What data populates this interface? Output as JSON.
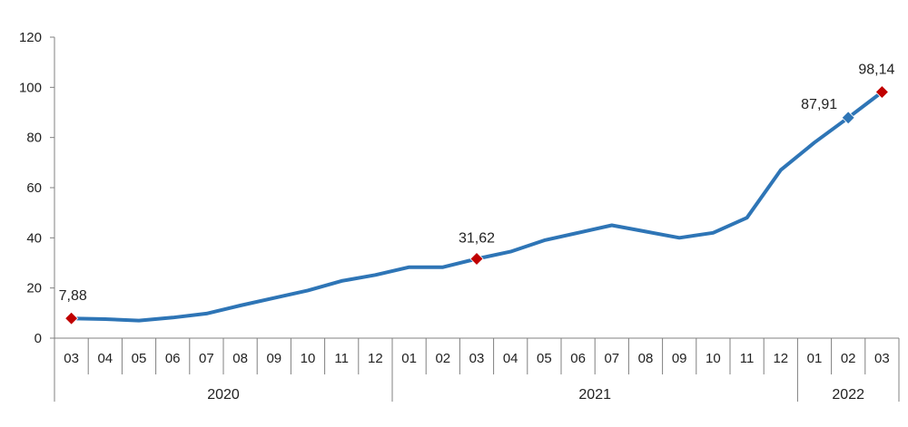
{
  "chart_data": {
    "type": "line",
    "title": "",
    "xlabel": "",
    "ylabel": "",
    "ylim": [
      0,
      120
    ],
    "yticks": [
      "0",
      "20",
      "40",
      "60",
      "80",
      "100",
      "120"
    ],
    "grid": false,
    "legend": "none",
    "categories": [
      "03",
      "04",
      "05",
      "06",
      "07",
      "08",
      "09",
      "10",
      "11",
      "12",
      "01",
      "02",
      "03",
      "04",
      "05",
      "06",
      "07",
      "08",
      "09",
      "10",
      "11",
      "12",
      "01",
      "02",
      "03"
    ],
    "years": [
      {
        "label": "2020",
        "count": 10
      },
      {
        "label": "2021",
        "count": 12
      },
      {
        "label": "2022",
        "count": 3
      }
    ],
    "series": [
      {
        "color": "#2e75b6",
        "values": [
          7.88,
          7.6,
          7.0,
          8.2,
          9.8,
          13.0,
          16.0,
          19.0,
          22.8,
          25.2,
          28.3,
          28.3,
          31.62,
          34.5,
          39.0,
          42.0,
          45.0,
          42.5,
          40.0,
          42.0,
          48.0,
          67.0,
          78.0,
          87.91,
          98.14
        ]
      }
    ],
    "annotations": [
      {
        "index": 0,
        "label": "7,88",
        "color": "#c00000"
      },
      {
        "index": 12,
        "label": "31,62",
        "color": "#c00000"
      },
      {
        "index": 23,
        "label": "87,91",
        "color": "#2e75b6"
      },
      {
        "index": 24,
        "label": "98,14",
        "color": "#c00000"
      }
    ],
    "axis_color": "#808080"
  }
}
